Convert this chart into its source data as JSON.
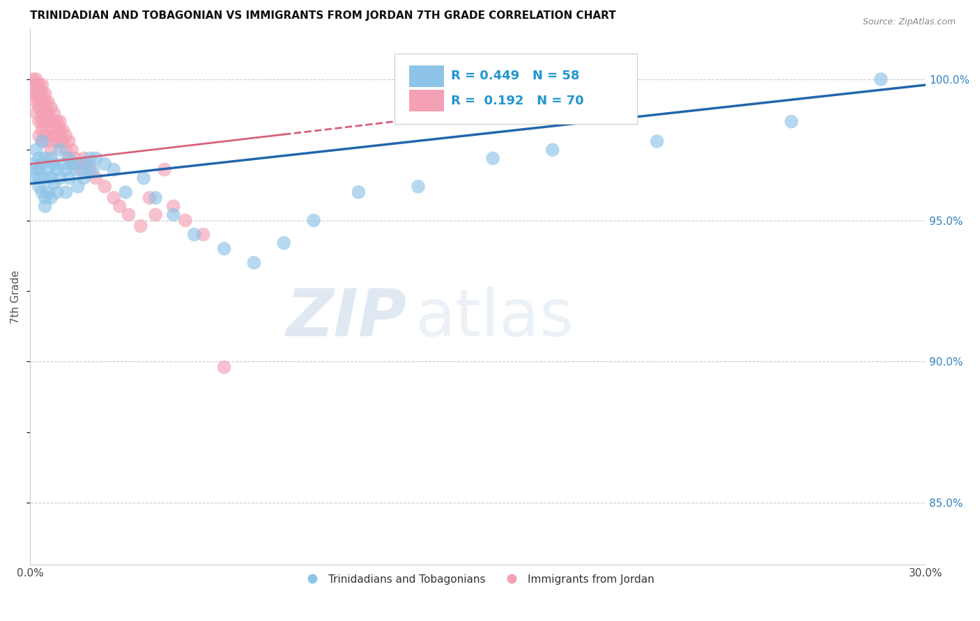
{
  "title": "TRINIDADIAN AND TOBAGONIAN VS IMMIGRANTS FROM JORDAN 7TH GRADE CORRELATION CHART",
  "source": "Source: ZipAtlas.com",
  "ylabel": "7th Grade",
  "yaxis_labels": [
    "100.0%",
    "95.0%",
    "90.0%",
    "85.0%"
  ],
  "yaxis_values": [
    1.0,
    0.95,
    0.9,
    0.85
  ],
  "xmin": 0.0,
  "xmax": 0.3,
  "ymin": 0.828,
  "ymax": 1.018,
  "legend_blue_r": "R = 0.449",
  "legend_blue_n": "N = 58",
  "legend_pink_r": "R =  0.192",
  "legend_pink_n": "N = 70",
  "legend_blue_label": "Trinidadians and Tobagonians",
  "legend_pink_label": "Immigrants from Jordan",
  "blue_color": "#8ec4e8",
  "pink_color": "#f4a0b5",
  "blue_line_color": "#2166ac",
  "pink_line_color": "#d6617b",
  "legend_text_color": "#2196d0",
  "watermark_zip": "ZIP",
  "watermark_atlas": "atlas",
  "blue_x": [
    0.001,
    0.001,
    0.002,
    0.002,
    0.003,
    0.003,
    0.003,
    0.003,
    0.004,
    0.004,
    0.004,
    0.005,
    0.005,
    0.005,
    0.005,
    0.006,
    0.006,
    0.007,
    0.007,
    0.007,
    0.008,
    0.008,
    0.009,
    0.009,
    0.01,
    0.01,
    0.011,
    0.012,
    0.012,
    0.013,
    0.013,
    0.014,
    0.015,
    0.016,
    0.017,
    0.018,
    0.019,
    0.02,
    0.021,
    0.022,
    0.025,
    0.028,
    0.032,
    0.038,
    0.042,
    0.048,
    0.055,
    0.065,
    0.075,
    0.085,
    0.095,
    0.11,
    0.13,
    0.155,
    0.175,
    0.21,
    0.255,
    0.285
  ],
  "blue_y": [
    0.97,
    0.965,
    0.975,
    0.968,
    0.972,
    0.968,
    0.965,
    0.962,
    0.978,
    0.97,
    0.96,
    0.972,
    0.965,
    0.958,
    0.955,
    0.968,
    0.96,
    0.972,
    0.965,
    0.958,
    0.97,
    0.963,
    0.968,
    0.96,
    0.975,
    0.965,
    0.97,
    0.968,
    0.96,
    0.972,
    0.965,
    0.97,
    0.968,
    0.962,
    0.97,
    0.965,
    0.968,
    0.972,
    0.968,
    0.972,
    0.97,
    0.968,
    0.96,
    0.965,
    0.958,
    0.952,
    0.945,
    0.94,
    0.935,
    0.942,
    0.95,
    0.96,
    0.962,
    0.972,
    0.975,
    0.978,
    0.985,
    1.0
  ],
  "pink_x": [
    0.001,
    0.001,
    0.001,
    0.002,
    0.002,
    0.002,
    0.002,
    0.002,
    0.003,
    0.003,
    0.003,
    0.003,
    0.003,
    0.003,
    0.004,
    0.004,
    0.004,
    0.004,
    0.004,
    0.004,
    0.004,
    0.005,
    0.005,
    0.005,
    0.005,
    0.005,
    0.006,
    0.006,
    0.006,
    0.006,
    0.006,
    0.007,
    0.007,
    0.007,
    0.007,
    0.008,
    0.008,
    0.008,
    0.009,
    0.009,
    0.009,
    0.01,
    0.01,
    0.01,
    0.011,
    0.011,
    0.012,
    0.012,
    0.013,
    0.013,
    0.014,
    0.015,
    0.016,
    0.017,
    0.018,
    0.019,
    0.02,
    0.022,
    0.025,
    0.028,
    0.03,
    0.033,
    0.037,
    0.04,
    0.042,
    0.045,
    0.048,
    0.052,
    0.058,
    0.065
  ],
  "pink_y": [
    1.0,
    0.998,
    0.995,
    1.0,
    0.998,
    0.995,
    0.992,
    0.988,
    0.998,
    0.995,
    0.992,
    0.99,
    0.985,
    0.98,
    0.998,
    0.995,
    0.992,
    0.988,
    0.985,
    0.982,
    0.978,
    0.995,
    0.992,
    0.988,
    0.985,
    0.98,
    0.992,
    0.988,
    0.985,
    0.982,
    0.978,
    0.99,
    0.985,
    0.98,
    0.975,
    0.988,
    0.985,
    0.98,
    0.985,
    0.982,
    0.978,
    0.985,
    0.982,
    0.978,
    0.982,
    0.978,
    0.98,
    0.975,
    0.978,
    0.972,
    0.975,
    0.972,
    0.97,
    0.968,
    0.972,
    0.97,
    0.968,
    0.965,
    0.962,
    0.958,
    0.955,
    0.952,
    0.948,
    0.958,
    0.952,
    0.968,
    0.955,
    0.95,
    0.945,
    0.898
  ]
}
